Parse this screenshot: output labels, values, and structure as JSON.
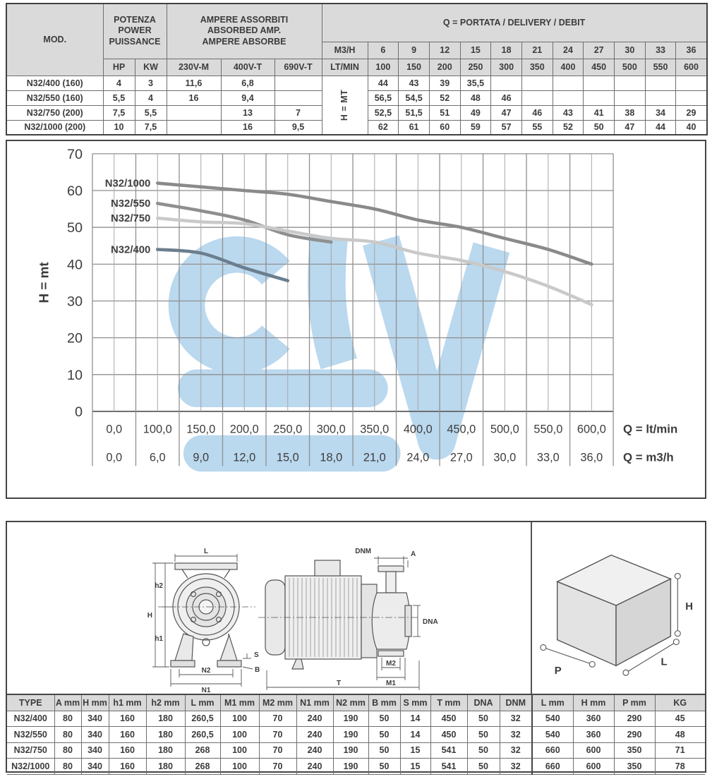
{
  "top_table": {
    "mod_header": "MOD.",
    "power_header": "POTENZA\nPOWER\nPUISSANCE",
    "ampere_header": "AMPERE ASSORBITI\nABSORBED AMP.\nAMPERE ABSORBE",
    "q_header": "Q = PORTATA / DELIVERY / DEBIT",
    "sub_headers": [
      "HP",
      "KW",
      "230V-M",
      "400V-T",
      "690V-T"
    ],
    "m3h_label": "M3/H",
    "ltmin_label": "LT/MIN",
    "h_mt_label": "H = MT",
    "m3h_values": [
      "6",
      "9",
      "12",
      "15",
      "18",
      "21",
      "24",
      "27",
      "30",
      "33",
      "36"
    ],
    "ltmin_values": [
      "100",
      "150",
      "200",
      "250",
      "300",
      "350",
      "400",
      "450",
      "500",
      "550",
      "600"
    ],
    "rows": [
      {
        "model": "N32/400 (160)",
        "hp": "4",
        "kw": "3",
        "v230": "11,6",
        "v400": "6,8",
        "v690": "",
        "heads": [
          "44",
          "43",
          "39",
          "35,5",
          "",
          "",
          "",
          "",
          "",
          "",
          ""
        ]
      },
      {
        "model": "N32/550 (160)",
        "hp": "5,5",
        "kw": "4",
        "v230": "16",
        "v400": "9,4",
        "v690": "",
        "heads": [
          "56,5",
          "54,5",
          "52",
          "48",
          "46",
          "",
          "",
          "",
          "",
          "",
          ""
        ]
      },
      {
        "model": "N32/750 (200)",
        "hp": "7,5",
        "kw": "5,5",
        "v230": "",
        "v400": "13",
        "v690": "7",
        "heads": [
          "52,5",
          "51,5",
          "51",
          "49",
          "47",
          "46",
          "43",
          "41",
          "38",
          "34",
          "29"
        ]
      },
      {
        "model": "N32/1000 (200)",
        "hp": "10",
        "kw": "7,5",
        "v230": "",
        "v400": "16",
        "v690": "9,5",
        "heads": [
          "62",
          "61",
          "60",
          "59",
          "57",
          "55",
          "52",
          "50",
          "47",
          "44",
          "40"
        ]
      }
    ]
  },
  "chart_data": {
    "type": "line",
    "ylabel": "H = mt",
    "xlabel_primary": "Q = lt/min",
    "xlabel_secondary": "Q = m3/h",
    "ylim": [
      0,
      70
    ],
    "y_ticks": [
      0,
      10,
      20,
      30,
      40,
      50,
      60,
      70
    ],
    "x_ticks_ltmin": [
      "0,0",
      "100,0",
      "150,0",
      "200,0",
      "250,0",
      "300,0",
      "350,0",
      "400,0",
      "450,0",
      "500,0",
      "550,0",
      "600,0"
    ],
    "x_ticks_m3h": [
      "0,0",
      "6,0",
      "9,0",
      "12,0",
      "15,0",
      "18,0",
      "21,0",
      "24,0",
      "27,0",
      "30,0",
      "33,0",
      "36,0"
    ],
    "x_values_ltmin": [
      100,
      150,
      200,
      250,
      300,
      350,
      400,
      450,
      500,
      550,
      600
    ],
    "grid": true,
    "legend_position": "inline-left",
    "series": [
      {
        "name": "N32/1000",
        "color": "#8a8a8a",
        "values": [
          62,
          61,
          60,
          59,
          57,
          55,
          52,
          50,
          47,
          44,
          40
        ]
      },
      {
        "name": "N32/550",
        "color": "#8f8f8f",
        "values": [
          56.5,
          54.5,
          52,
          48,
          46
        ]
      },
      {
        "name": "N32/750",
        "color": "#c9c9c9",
        "values": [
          52.5,
          51.5,
          51,
          49,
          47,
          46,
          43,
          41,
          38,
          34,
          29
        ]
      },
      {
        "name": "N32/400",
        "color": "#6b7e8e",
        "values": [
          44,
          43,
          39,
          35.5
        ]
      }
    ],
    "watermark_color": "#bad8ee"
  },
  "drawings": {
    "front_view_labels": [
      "L",
      "h2",
      "H",
      "h1",
      "N2",
      "N1",
      "S",
      "B"
    ],
    "side_view_labels": [
      "DNM",
      "A",
      "DNA",
      "M2",
      "M1",
      "T"
    ],
    "box_labels": [
      "H",
      "L",
      "P"
    ]
  },
  "dim_table": {
    "headers": [
      "TYPE",
      "A mm",
      "H mm",
      "h1 mm",
      "h2 mm",
      "L mm",
      "M1 mm",
      "M2 mm",
      "N1 mm",
      "N2 mm",
      "B mm",
      "S mm",
      "T mm",
      "DNA",
      "DNM",
      "L mm",
      "H mm",
      "P mm",
      "KG"
    ],
    "rows": [
      [
        "N32/400",
        "80",
        "340",
        "160",
        "180",
        "260,5",
        "100",
        "70",
        "240",
        "190",
        "50",
        "14",
        "450",
        "50",
        "32",
        "540",
        "360",
        "290",
        "45"
      ],
      [
        "N32/550",
        "80",
        "340",
        "160",
        "180",
        "260,5",
        "100",
        "70",
        "240",
        "190",
        "50",
        "14",
        "450",
        "50",
        "32",
        "540",
        "360",
        "290",
        "48"
      ],
      [
        "N32/750",
        "80",
        "340",
        "160",
        "180",
        "268",
        "100",
        "70",
        "240",
        "190",
        "50",
        "15",
        "541",
        "50",
        "32",
        "660",
        "600",
        "350",
        "71"
      ],
      [
        "N32/1000",
        "80",
        "340",
        "160",
        "180",
        "268",
        "100",
        "70",
        "240",
        "190",
        "50",
        "15",
        "541",
        "50",
        "32",
        "660",
        "600",
        "350",
        "78"
      ]
    ]
  }
}
